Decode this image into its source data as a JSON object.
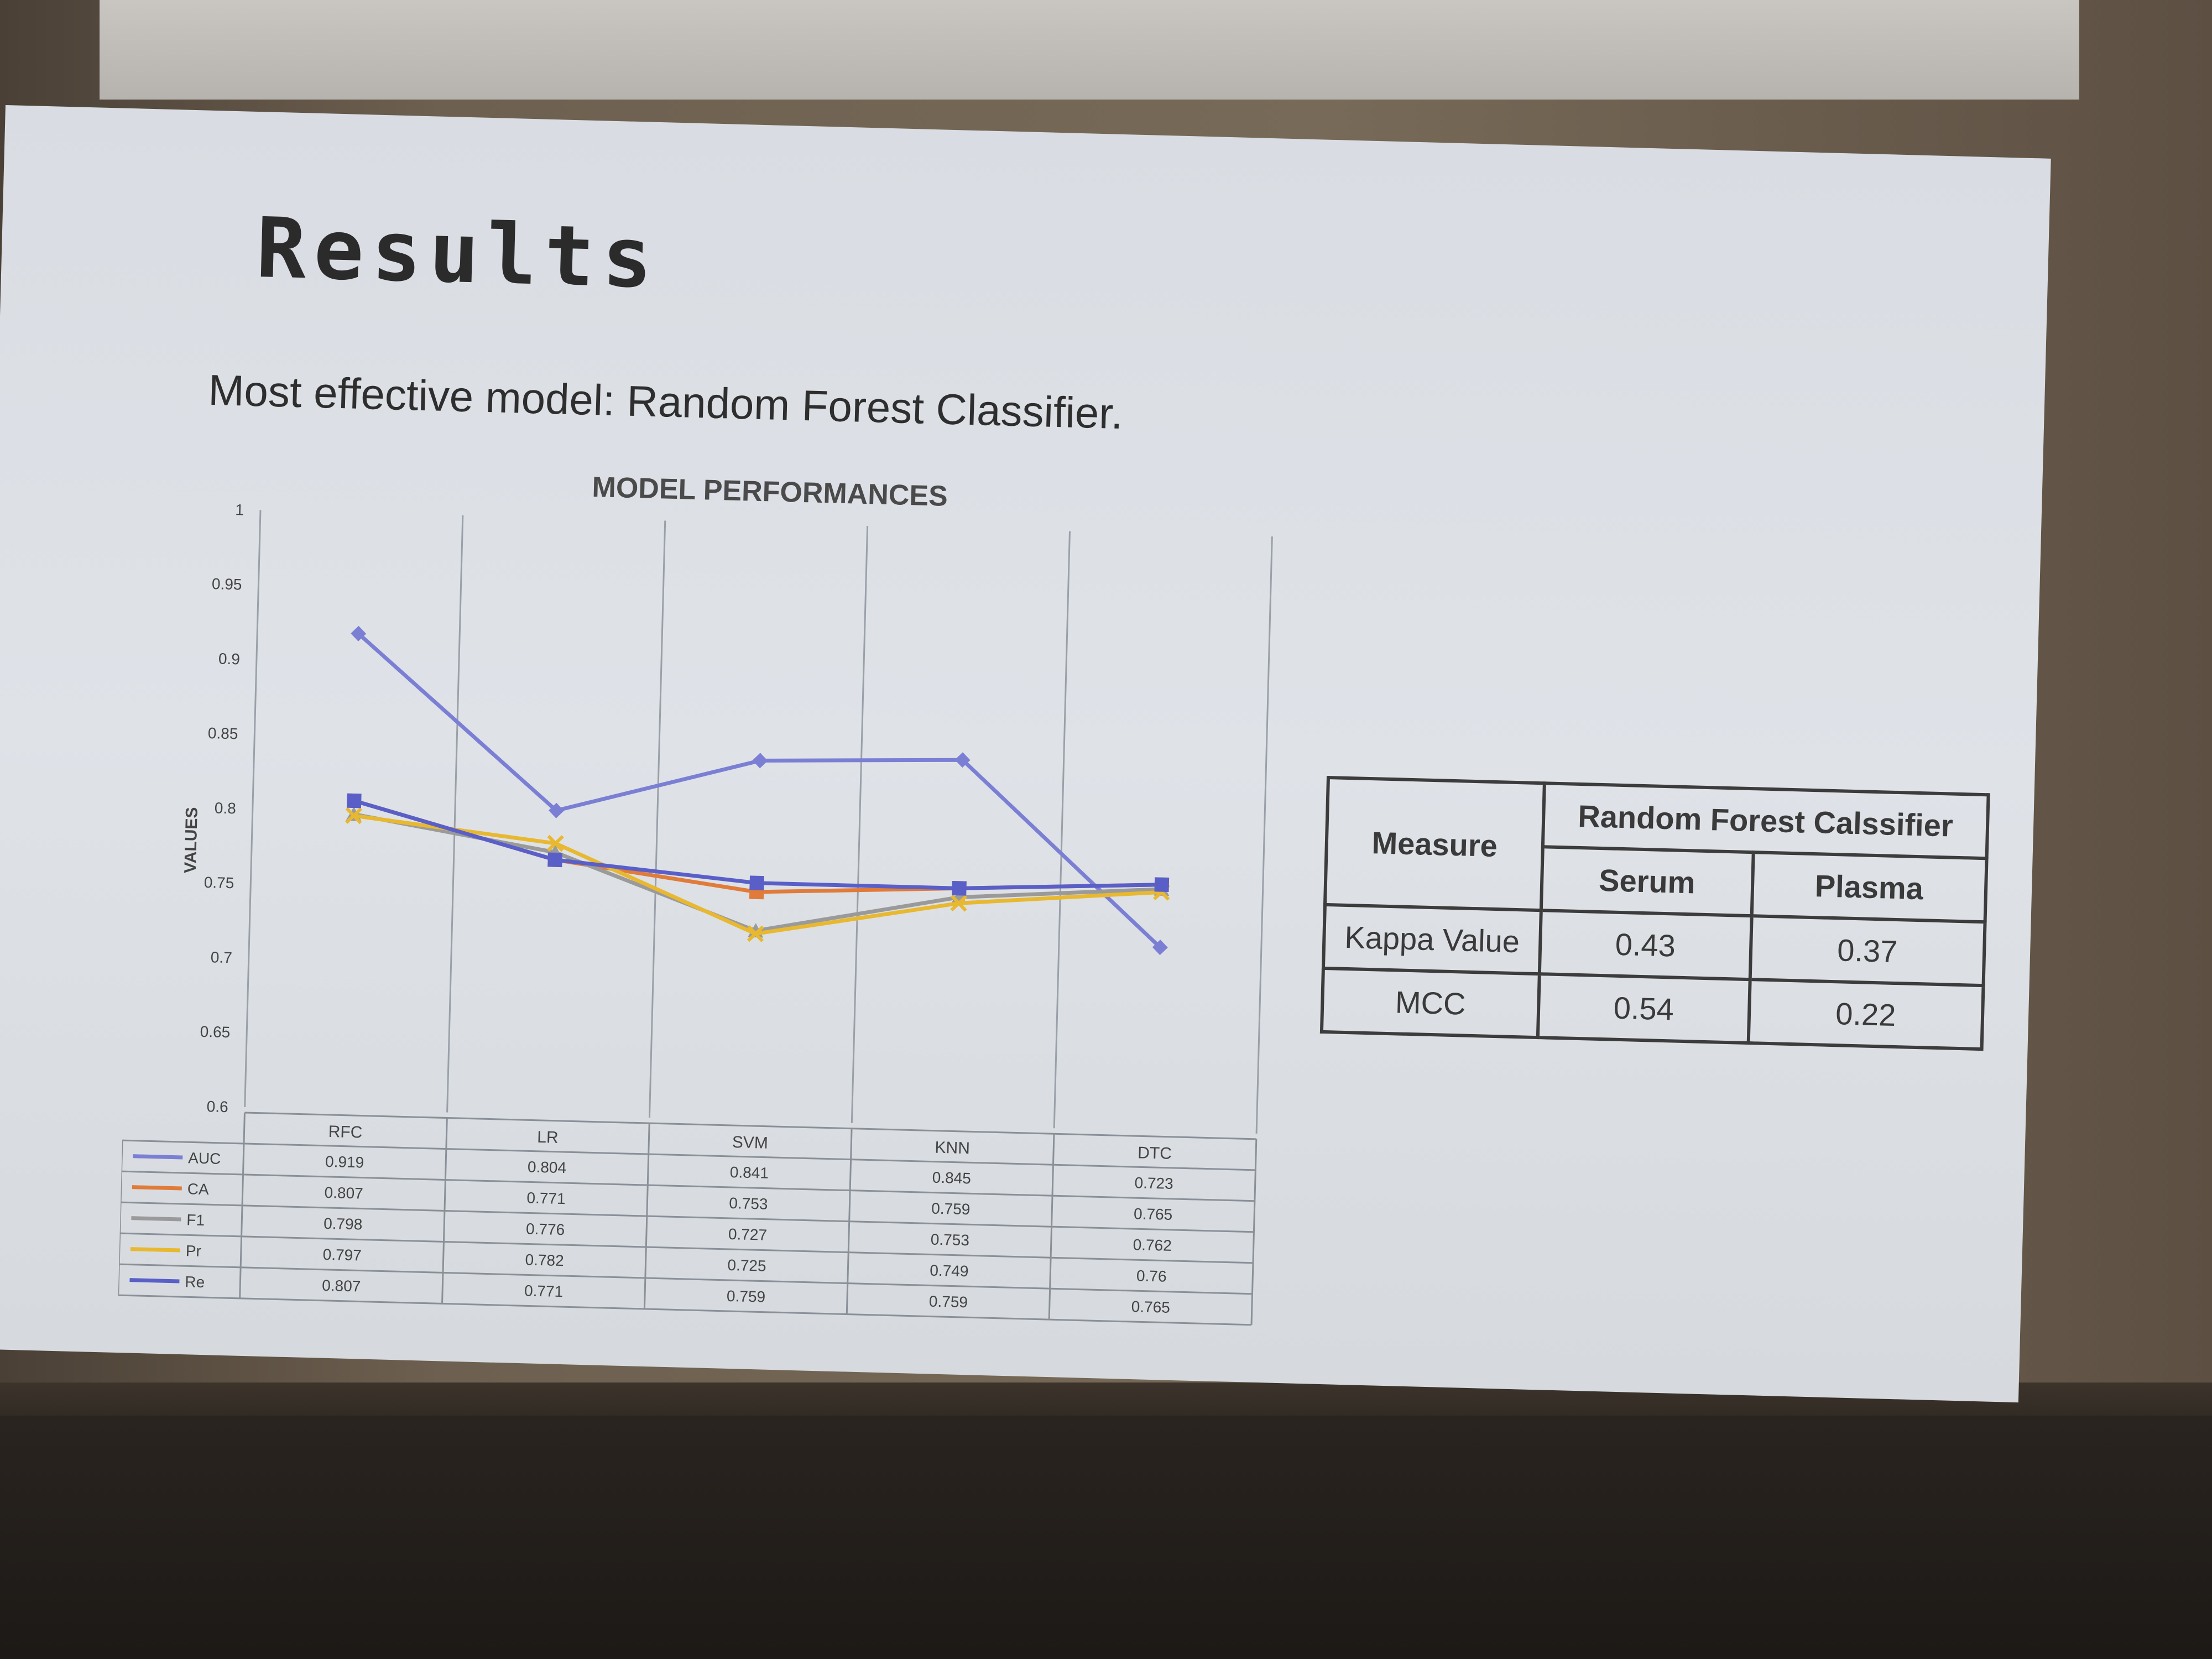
{
  "slide": {
    "title": "Results",
    "subtitle": "Most effective model: Random Forest Classifier."
  },
  "chart_data": {
    "type": "line",
    "title": "MODEL PERFORMANCES",
    "ylabel": "VALUES",
    "xlabel": "",
    "ylim": [
      0.6,
      1
    ],
    "yticks": [
      0.6,
      0.65,
      0.7,
      0.75,
      0.8,
      0.85,
      0.9,
      0.95,
      1
    ],
    "categories": [
      "RFC",
      "LR",
      "SVM",
      "KNN",
      "DTC"
    ],
    "legend_position": "bottom-table",
    "grid": true,
    "series": [
      {
        "name": "AUC",
        "color": "#7b7fd4",
        "marker": "diamond",
        "values": [
          0.919,
          0.804,
          0.841,
          0.845,
          0.723
        ]
      },
      {
        "name": "CA",
        "color": "#e07b39",
        "marker": "square",
        "values": [
          0.807,
          0.771,
          0.753,
          0.759,
          0.765
        ]
      },
      {
        "name": "F1",
        "color": "#9a9a9a",
        "marker": "triangle",
        "values": [
          0.798,
          0.776,
          0.727,
          0.753,
          0.762
        ]
      },
      {
        "name": "Pr",
        "color": "#e8b830",
        "marker": "x",
        "values": [
          0.797,
          0.782,
          0.725,
          0.749,
          0.76
        ]
      },
      {
        "name": "Re",
        "color": "#5a5fc8",
        "marker": "square",
        "values": [
          0.807,
          0.771,
          0.759,
          0.759,
          0.765
        ]
      }
    ]
  },
  "table": {
    "header_measure": "Measure",
    "header_group": "Random Forest Calssifier",
    "sub_headers": [
      "Serum",
      "Plasma"
    ],
    "rows": [
      {
        "label": "Kappa Value",
        "serum": "0.43",
        "plasma": "0.37"
      },
      {
        "label": "MCC",
        "serum": "0.54",
        "plasma": "0.22"
      }
    ]
  }
}
